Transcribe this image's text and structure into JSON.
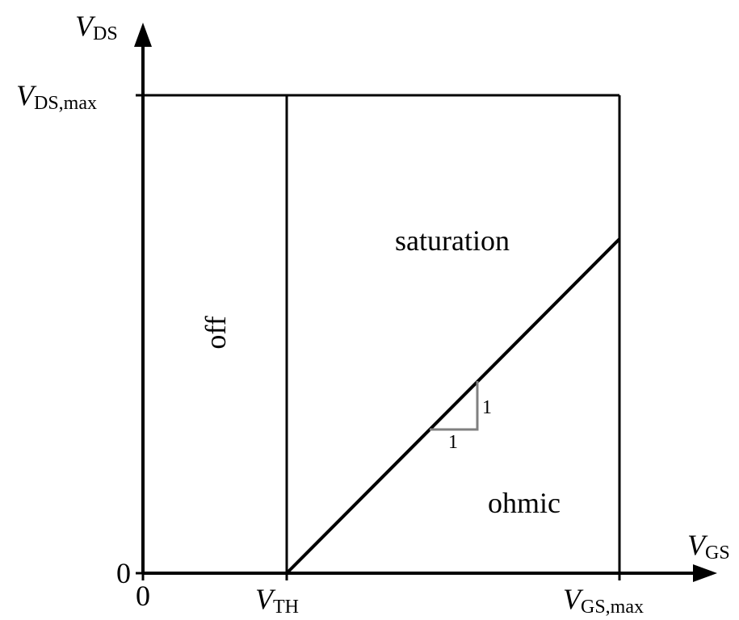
{
  "diagram": {
    "axes": {
      "y": {
        "symbol": "V",
        "subscript": "DS"
      },
      "x": {
        "symbol": "V",
        "subscript": "GS"
      }
    },
    "y_ticks": [
      {
        "main": "0",
        "subscript": ""
      },
      {
        "main": "V",
        "subscript": "DS,max"
      }
    ],
    "x_ticks": [
      {
        "main": "0",
        "subscript": ""
      },
      {
        "main": "V",
        "subscript": "TH"
      },
      {
        "main": "V",
        "subscript": "GS,max"
      }
    ],
    "regions": {
      "off": "off",
      "saturation": "saturation",
      "ohmic": "ohmic"
    },
    "slope": {
      "run": "1",
      "rise": "1"
    },
    "colors": {
      "lines": "#000000",
      "slope_triangle": "#808080"
    }
  }
}
